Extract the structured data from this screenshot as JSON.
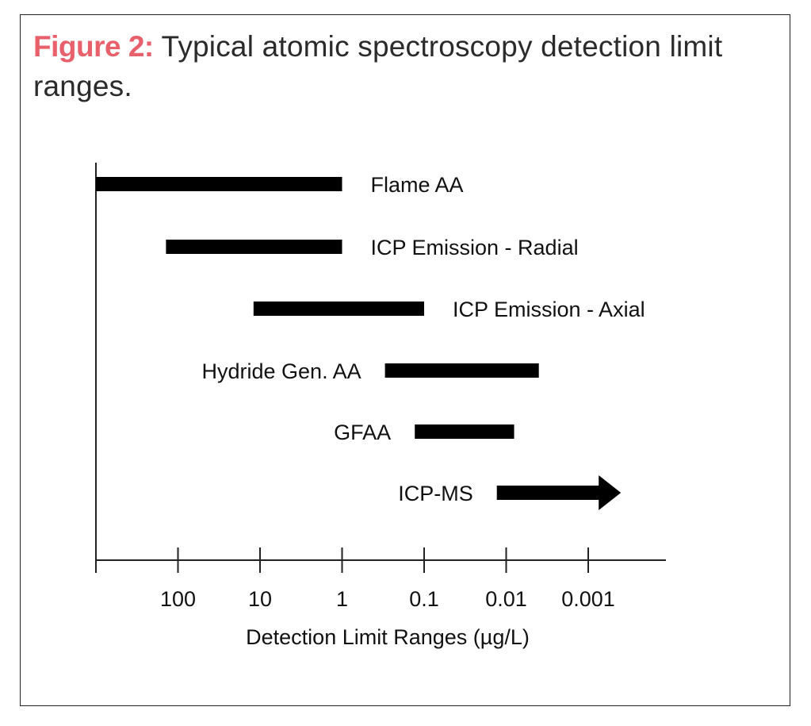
{
  "caption": {
    "prefix": "Figure 2:",
    "text": " Typical atomic spectroscopy detection limit ranges.",
    "prefix_color": "#e8606b"
  },
  "chart_data": {
    "type": "bar",
    "xlabel": "Detection Limit Ranges (µg/L)",
    "x_scale": "log",
    "x_direction": "decreasing",
    "x_ticks": [
      {
        "value": 1000,
        "label": ""
      },
      {
        "value": 100,
        "label": "100"
      },
      {
        "value": 10,
        "label": "10"
      },
      {
        "value": 1,
        "label": "1"
      },
      {
        "value": 0.1,
        "label": "0.1"
      },
      {
        "value": 0.01,
        "label": "0.01"
      },
      {
        "value": 0.001,
        "label": "0.001"
      }
    ],
    "xlim": [
      1000,
      0.0003
    ],
    "series": [
      {
        "name": "Flame AA",
        "from": 1000,
        "to": 1,
        "label_side": "right"
      },
      {
        "name": "ICP Emission - Radial",
        "from": 140,
        "to": 1,
        "label_side": "right"
      },
      {
        "name": "ICP Emission - Axial",
        "from": 12,
        "to": 0.1,
        "label_side": "right"
      },
      {
        "name": "Hydride Gen. AA",
        "from": 0.3,
        "to": 0.004,
        "label_side": "left"
      },
      {
        "name": "GFAA",
        "from": 0.13,
        "to": 0.008,
        "label_side": "left"
      },
      {
        "name": "ICP-MS",
        "from": 0.013,
        "to": 0.0004,
        "label_side": "left",
        "arrow": true
      }
    ],
    "bar_color": "#000000",
    "grid": false
  }
}
